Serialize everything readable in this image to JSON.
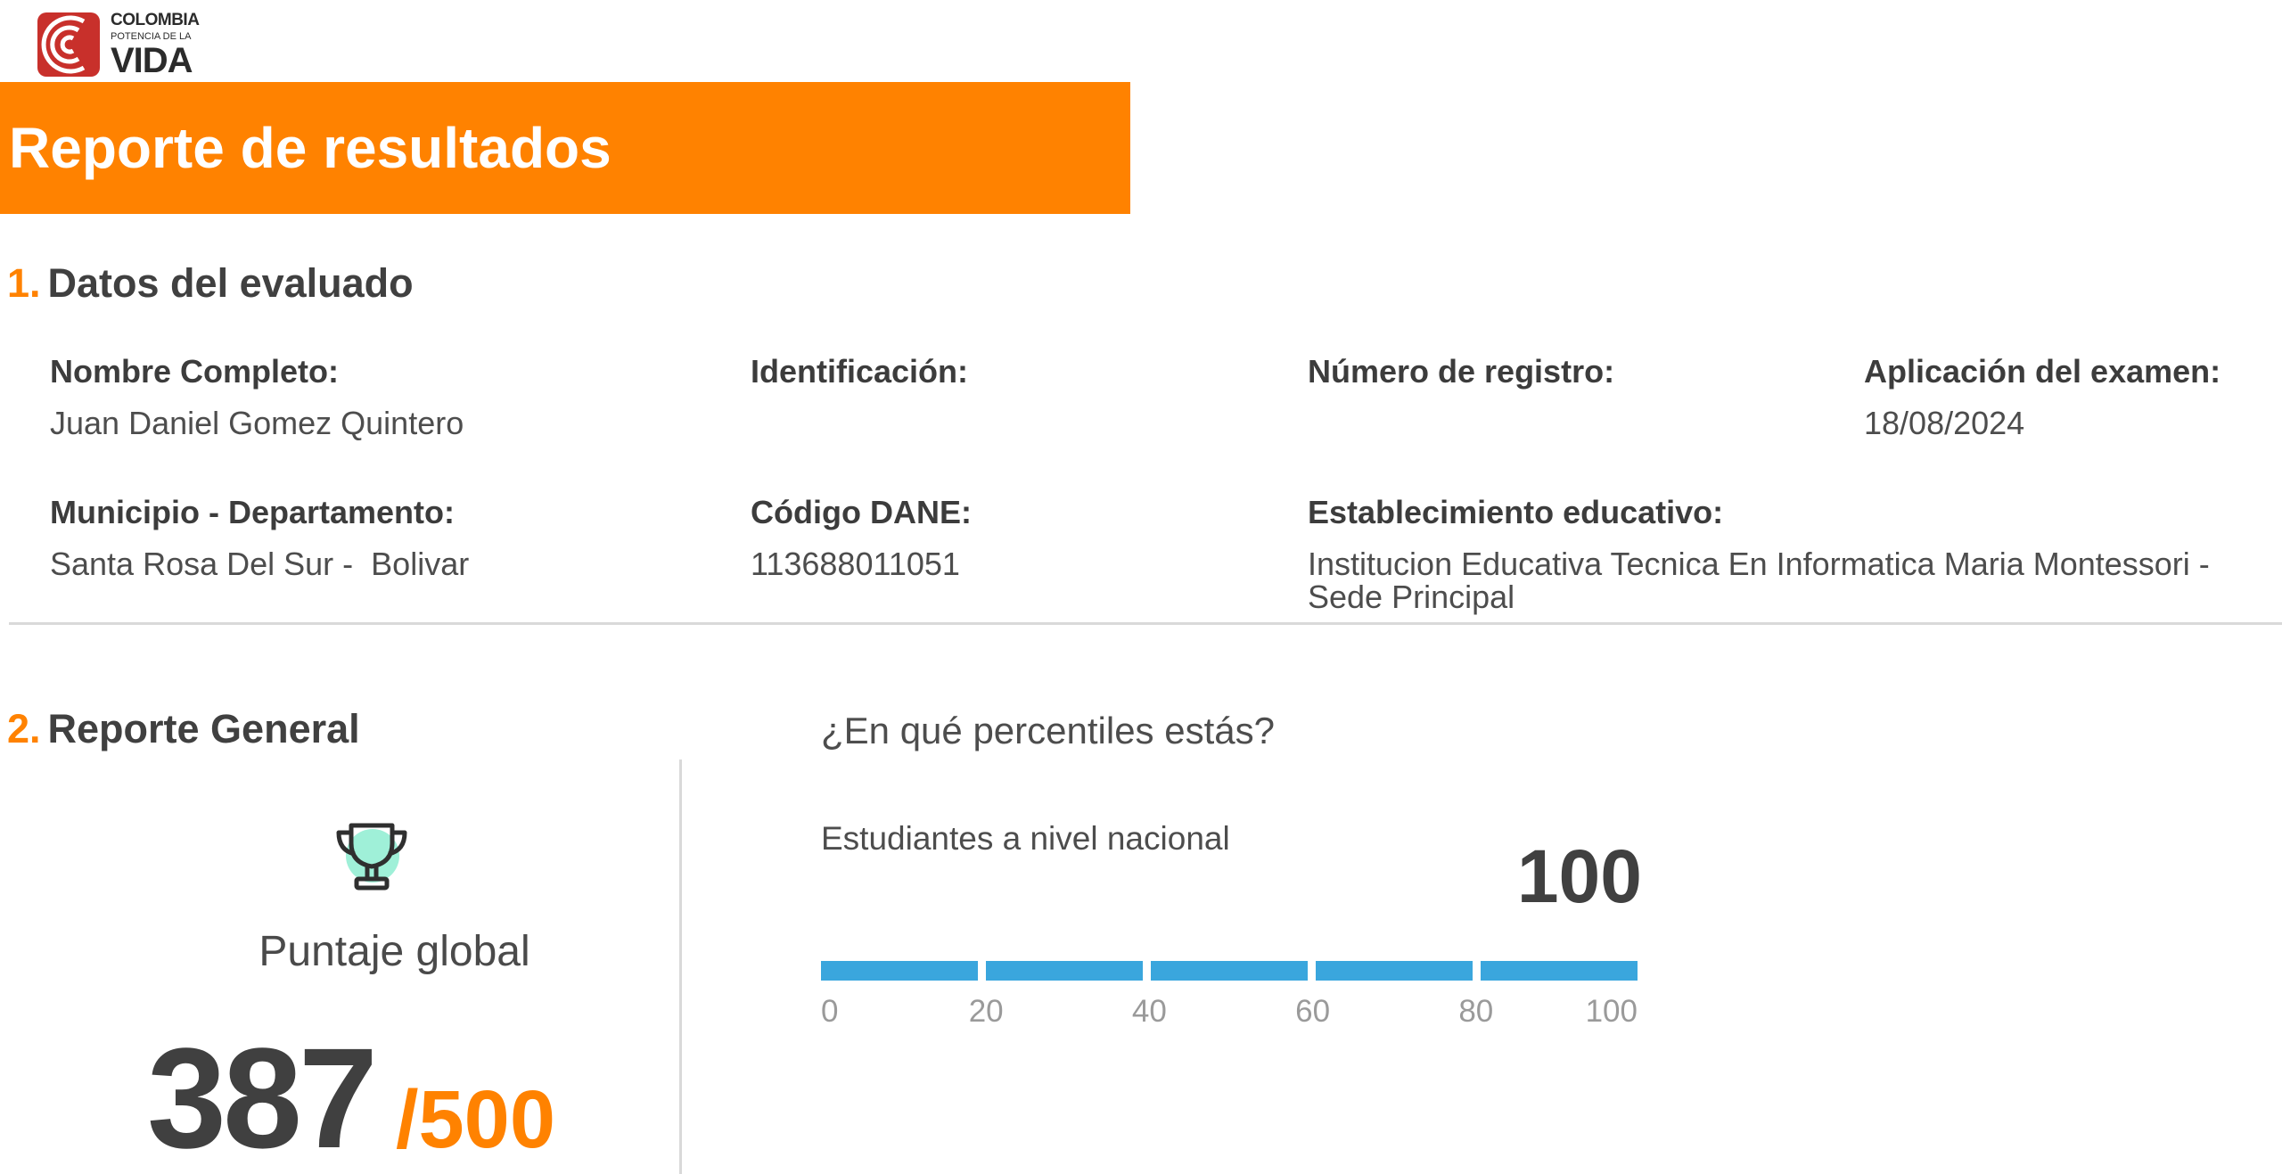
{
  "logo": {
    "line1": "COLOMBIA",
    "line2": "POTENCIA DE LA",
    "line3": "VIDA",
    "brand_color": "#c8302b"
  },
  "banner": {
    "title": "Reporte de resultados",
    "color": "#ff8200"
  },
  "section1": {
    "number": "1.",
    "title": "Datos del evaluado"
  },
  "fields": {
    "nombre": {
      "label": "Nombre Completo:",
      "value": "Juan Daniel Gomez Quintero"
    },
    "identificacion": {
      "label": "Identificación:",
      "value": ""
    },
    "registro": {
      "label": "Número de registro:",
      "value": ""
    },
    "aplicacion": {
      "label": "Aplicación del examen:",
      "value": "18/08/2024"
    },
    "municipio": {
      "label": "Municipio - Departamento:",
      "value": "Santa Rosa Del Sur -  Bolivar"
    },
    "dane": {
      "label": "Código DANE:",
      "value": "113688011051"
    },
    "establecimiento": {
      "label": "Establecimiento educativo:",
      "value": "Institucion Educativa Tecnica En Informatica Maria Montessori - Sede Principal"
    }
  },
  "section2": {
    "number": "2.",
    "title": "Reporte General"
  },
  "score": {
    "icon": "trophy-icon",
    "label": "Puntaje global",
    "value": "387",
    "max": "/500"
  },
  "percentile": {
    "question": "¿En qué percentiles estás?",
    "subtitle": "Estudiantes a nivel nacional",
    "value": "100",
    "fill_value": 100,
    "range": [
      0,
      100
    ],
    "ticks": [
      "0",
      "20",
      "40",
      "60",
      "80",
      "100"
    ],
    "bar_color": "#3aa6dd",
    "empty_color": "#e6e6e6"
  }
}
